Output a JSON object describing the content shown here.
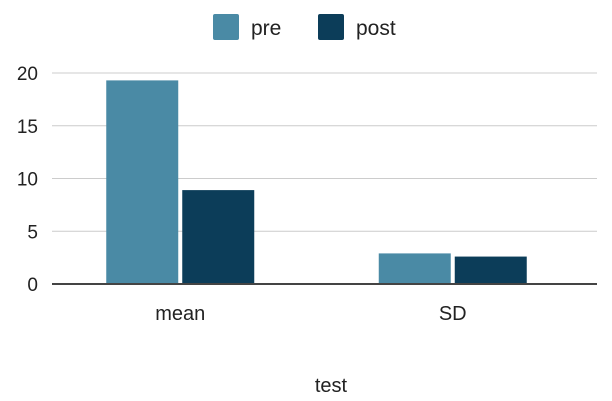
{
  "chart_data": {
    "type": "bar",
    "categories": [
      "mean",
      "SD"
    ],
    "series": [
      {
        "name": "pre",
        "values": [
          19.3,
          2.9
        ],
        "color": "#4a8aa5"
      },
      {
        "name": "post",
        "values": [
          8.9,
          2.6
        ],
        "color": "#0c3d59"
      }
    ],
    "xlabel": "test",
    "ylabel": "",
    "ylim": [
      0,
      20
    ],
    "yticks": [
      0,
      5,
      10,
      15,
      20
    ],
    "grid": true,
    "legend_position": "top-center"
  }
}
